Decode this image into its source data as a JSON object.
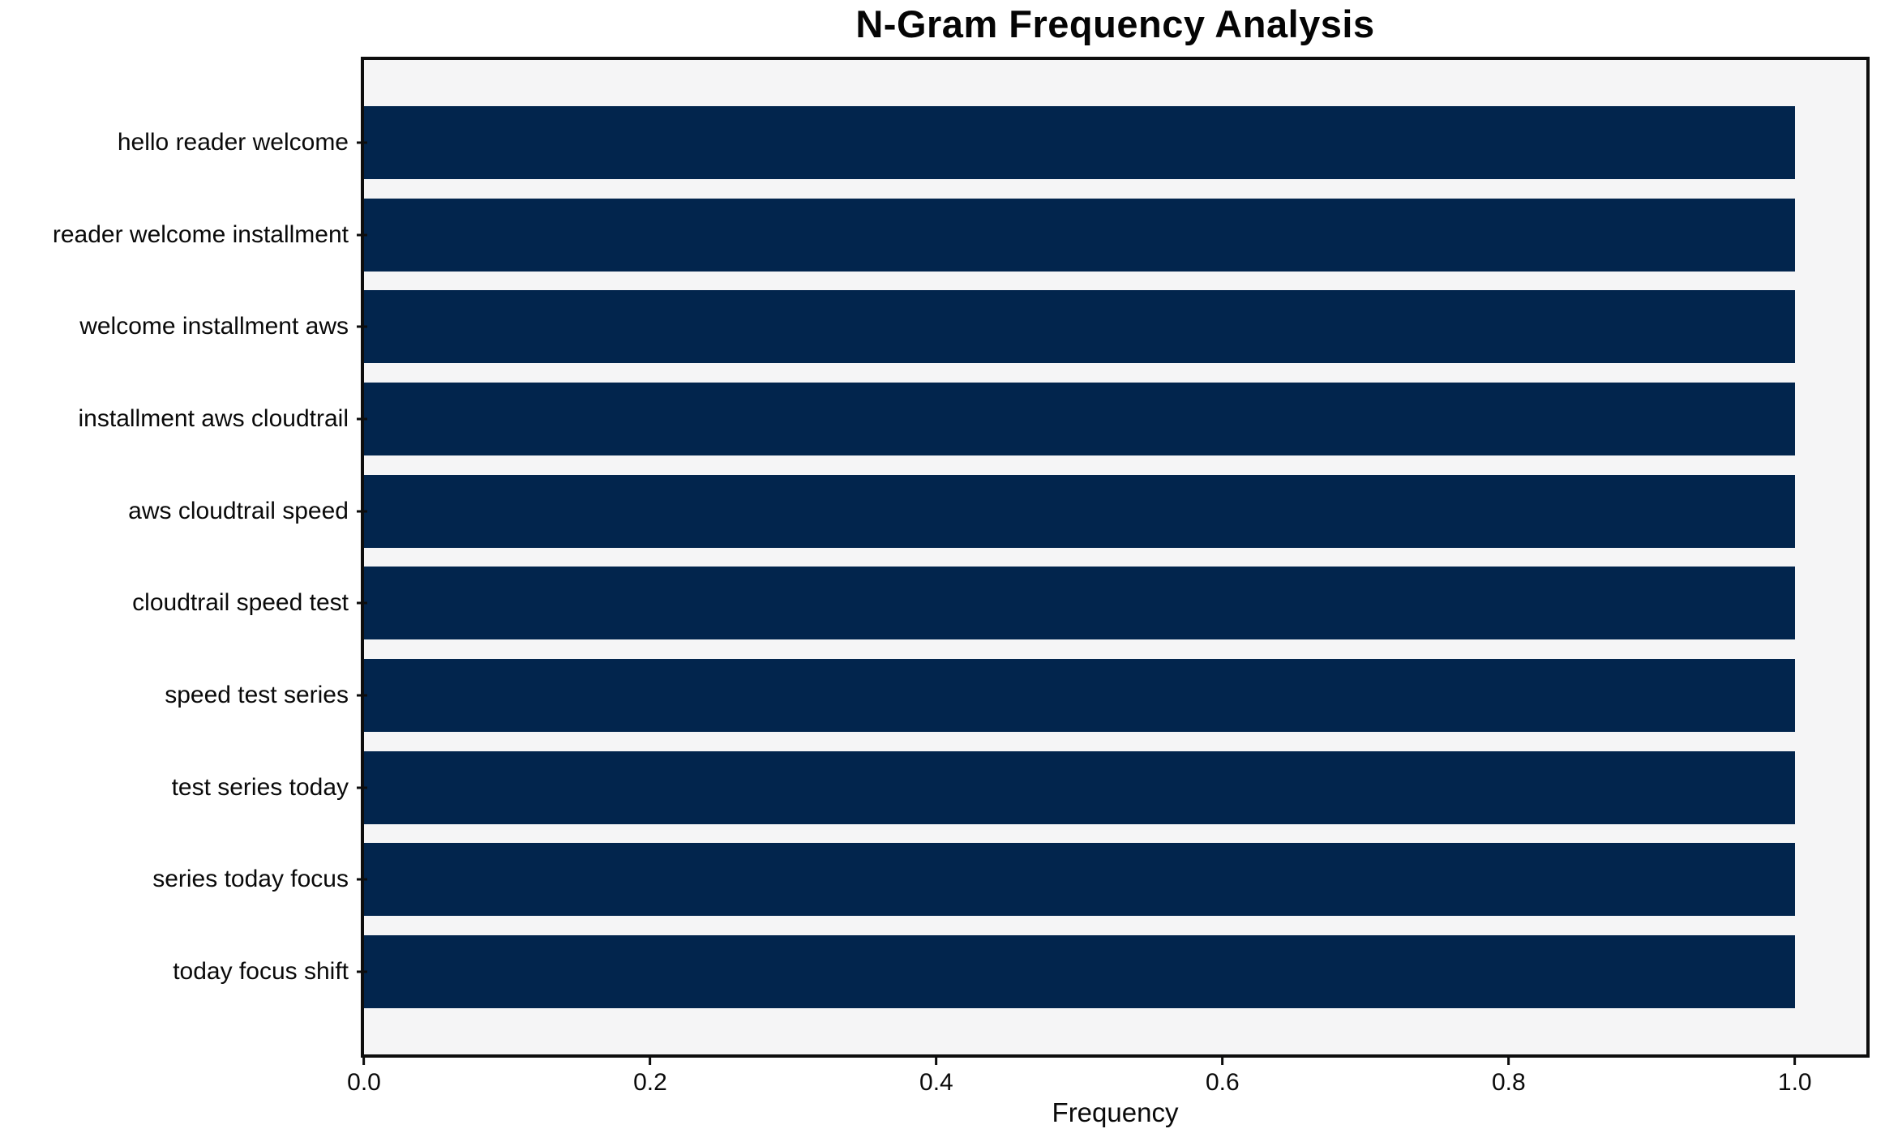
{
  "chart_data": {
    "type": "bar",
    "orientation": "horizontal",
    "title": "N-Gram Frequency Analysis",
    "xlabel": "Frequency",
    "ylabel": "",
    "categories": [
      "hello reader welcome",
      "reader welcome installment",
      "welcome installment aws",
      "installment aws cloudtrail",
      "aws cloudtrail speed",
      "cloudtrail speed test",
      "speed test series",
      "test series today",
      "series today focus",
      "today focus shift"
    ],
    "values": [
      1.0,
      1.0,
      1.0,
      1.0,
      1.0,
      1.0,
      1.0,
      1.0,
      1.0,
      1.0
    ],
    "xlim": [
      0,
      1.05
    ],
    "xticks": [
      {
        "value": 0.0,
        "label": "0.0"
      },
      {
        "value": 0.2,
        "label": "0.2"
      },
      {
        "value": 0.4,
        "label": "0.4"
      },
      {
        "value": 0.6,
        "label": "0.6"
      },
      {
        "value": 0.8,
        "label": "0.8"
      },
      {
        "value": 1.0,
        "label": "1.0"
      }
    ],
    "grid": false,
    "legend": "none",
    "colors": {
      "bar": "#02254d",
      "plot_background": "#f5f5f6",
      "figure_background": "#ffffff",
      "spine": "#0d0d0d",
      "text": "#0a0a0a"
    }
  }
}
